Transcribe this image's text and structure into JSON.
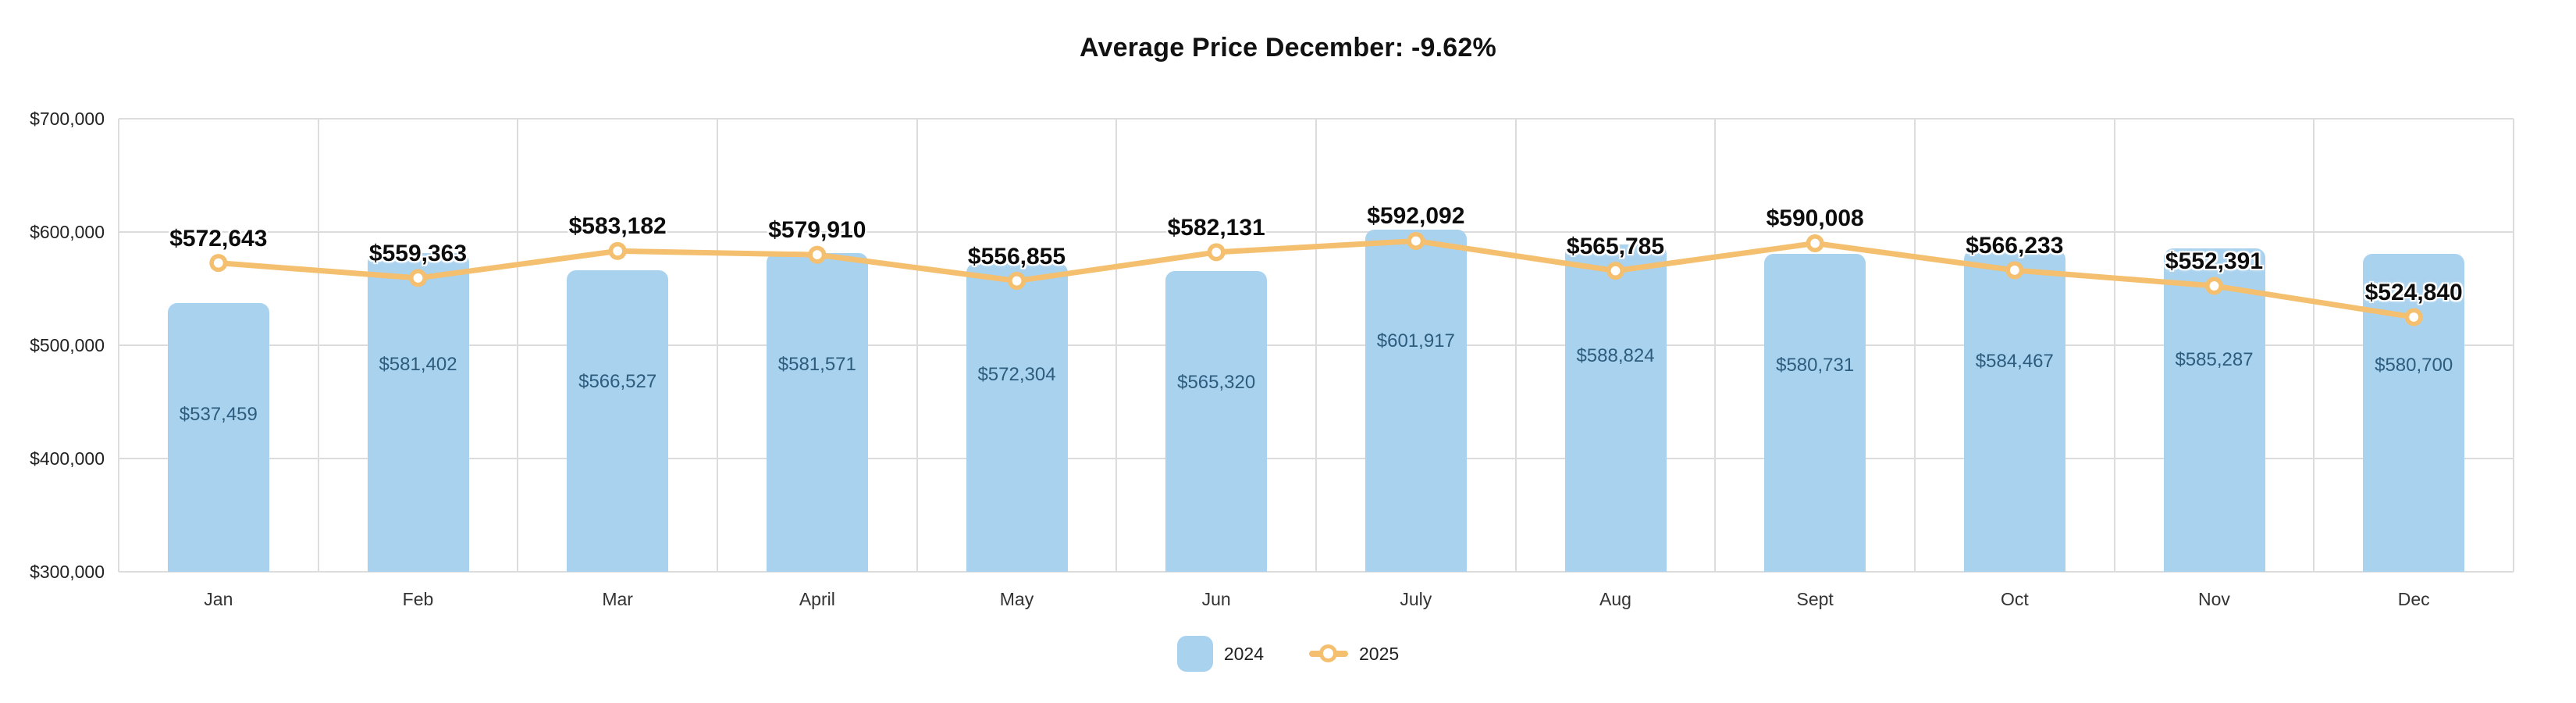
{
  "chart_data": {
    "type": "combo",
    "title": "Average Price December: -9.62%",
    "categories": [
      "Jan",
      "Feb",
      "Mar",
      "April",
      "May",
      "Jun",
      "July",
      "Aug",
      "Sept",
      "Oct",
      "Nov",
      "Dec"
    ],
    "series": [
      {
        "name": "2024",
        "type": "bar",
        "color": "#a9d2ef",
        "values": [
          537459,
          581402,
          566527,
          581571,
          572304,
          565320,
          601917,
          588824,
          580731,
          584467,
          585287,
          580700
        ],
        "labels": [
          "$537,459",
          "$581,402",
          "$566,527",
          "$581,571",
          "$572,304",
          "$565,320",
          "$601,917",
          "$588,824",
          "$580,731",
          "$584,467",
          "$585,287",
          "$580,700"
        ]
      },
      {
        "name": "2025",
        "type": "line",
        "color": "#f4bf6e",
        "values": [
          572643,
          559363,
          583182,
          579910,
          556855,
          582131,
          592092,
          565785,
          590008,
          566233,
          552391,
          524840
        ],
        "labels": [
          "$572,643",
          "$559,363",
          "$583,182",
          "$579,910",
          "$556,855",
          "$582,131",
          "$592,092",
          "$565,785",
          "$590,008",
          "$566,233",
          "$552,391",
          "$524,840"
        ]
      }
    ],
    "y_axis": {
      "min": 300000,
      "max": 700000,
      "step": 100000,
      "tick_labels": [
        "$300,000",
        "$400,000",
        "$500,000",
        "$600,000",
        "$700,000"
      ]
    },
    "grid": true,
    "legend_position": "bottom",
    "colors": {
      "background": "#ffffff",
      "bar_fill": "#a9d2ef",
      "bar_value_text": "#2d5c7d",
      "line_stroke": "#f4bf6e",
      "marker_fill": "#ffffff",
      "point_label_text": "#0d0d0d",
      "gridline": "#dcdcdc",
      "axis_text": "#222222",
      "title_text": "#111111"
    }
  }
}
